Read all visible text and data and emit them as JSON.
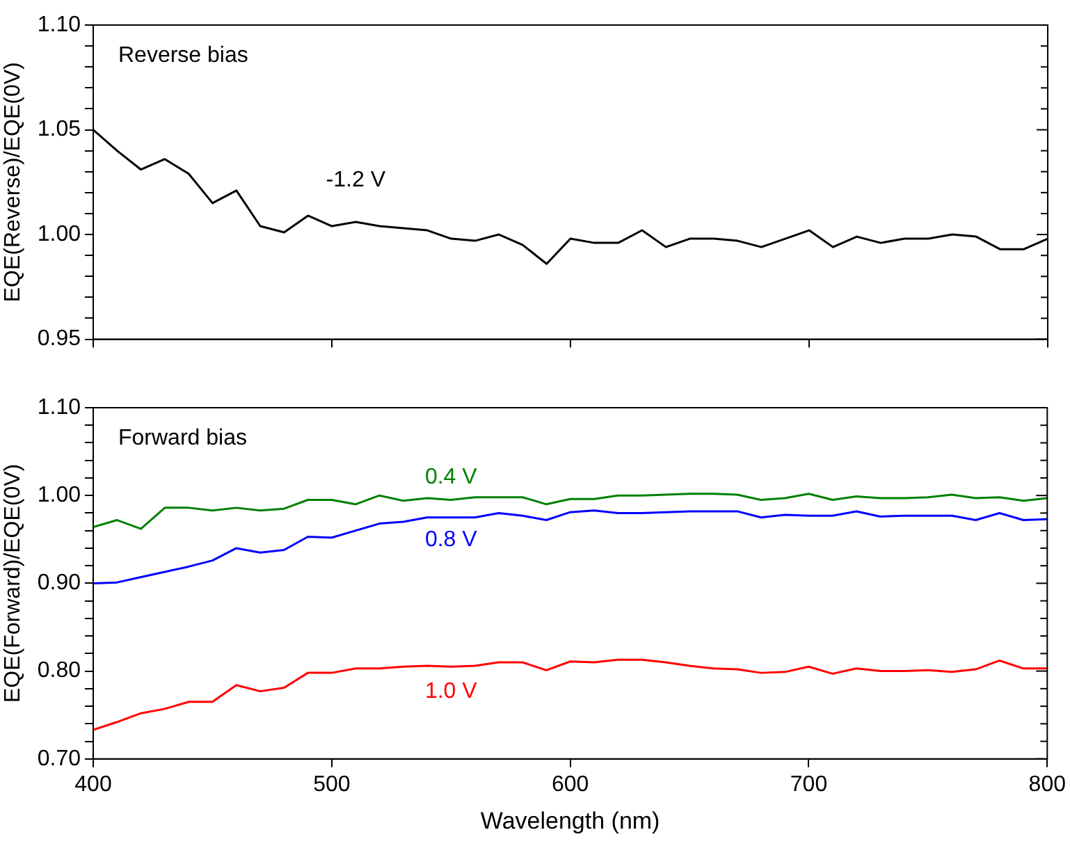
{
  "chart_data": [
    {
      "type": "line",
      "ylabel": "EQE(Reverse)/EQE(0V)",
      "annotations": [
        "Reverse bias"
      ],
      "x": [
        400,
        410,
        420,
        430,
        440,
        450,
        460,
        470,
        480,
        490,
        500,
        510,
        520,
        530,
        540,
        550,
        560,
        570,
        580,
        590,
        600,
        610,
        620,
        630,
        640,
        650,
        660,
        670,
        680,
        690,
        700,
        710,
        720,
        730,
        740,
        750,
        760,
        770,
        780,
        790,
        800
      ],
      "series": [
        {
          "name": "-1.2 V",
          "color": "#000000",
          "values": [
            1.05,
            1.04,
            1.031,
            1.036,
            1.029,
            1.015,
            1.021,
            1.004,
            1.001,
            1.009,
            1.004,
            1.006,
            1.004,
            1.003,
            1.002,
            0.998,
            0.997,
            1.0,
            0.995,
            0.986,
            0.998,
            0.996,
            0.996,
            1.002,
            0.994,
            0.998,
            0.998,
            0.997,
            0.994,
            0.998,
            1.002,
            0.994,
            0.999,
            0.996,
            0.998,
            0.998,
            1.0,
            0.999,
            0.993,
            0.993,
            0.998
          ]
        }
      ],
      "xlim": [
        400,
        800
      ],
      "xticks": [
        400,
        500,
        600,
        700,
        800
      ],
      "ylim": [
        0.95,
        1.1
      ],
      "yticks": [
        0.95,
        {
          "value": 0.96,
          "label": null
        },
        {
          "value": 0.97,
          "label": null
        },
        {
          "value": 0.98,
          "label": null
        },
        {
          "value": 0.99,
          "label": null
        },
        {
          "value": 1.0,
          "label": "1.00"
        },
        {
          "value": 1.01,
          "label": null
        },
        {
          "value": 1.02,
          "label": null
        },
        {
          "value": 1.03,
          "label": null
        },
        {
          "value": 1.04,
          "label": null
        },
        1.05,
        {
          "value": 1.06,
          "label": null
        },
        {
          "value": 1.07,
          "label": null
        },
        {
          "value": 1.08,
          "label": null
        },
        {
          "value": 1.09,
          "label": null
        },
        {
          "value": 1.1,
          "label": "1.10"
        }
      ],
      "tick_labels": "y",
      "grid": false,
      "legend": false,
      "marker": "none",
      "line_style": "solid"
    },
    {
      "type": "line",
      "xlabel": "Wavelength (nm)",
      "ylabel": "EQE(Forward)/EQE(0V)",
      "annotations": [
        "Forward bias"
      ],
      "x": [
        400,
        410,
        420,
        430,
        440,
        450,
        460,
        470,
        480,
        490,
        500,
        510,
        520,
        530,
        540,
        550,
        560,
        570,
        580,
        590,
        600,
        610,
        620,
        630,
        640,
        650,
        660,
        670,
        680,
        690,
        700,
        710,
        720,
        730,
        740,
        750,
        760,
        770,
        780,
        790,
        800
      ],
      "series": [
        {
          "name": "0.4 V",
          "color": "#008000",
          "values": [
            0.964,
            0.972,
            0.962,
            0.986,
            0.986,
            0.983,
            0.986,
            0.983,
            0.985,
            0.995,
            0.995,
            0.99,
            1.0,
            0.994,
            0.997,
            0.995,
            0.998,
            0.998,
            0.998,
            0.99,
            0.996,
            0.996,
            1.0,
            1.0,
            1.001,
            1.002,
            1.002,
            1.001,
            0.995,
            0.997,
            1.002,
            0.995,
            0.999,
            0.997,
            0.997,
            0.998,
            1.001,
            0.997,
            0.998,
            0.994,
            0.997
          ]
        },
        {
          "name": "0.8 V",
          "color": "#0000ff",
          "values": [
            0.9,
            0.901,
            0.907,
            0.913,
            0.919,
            0.926,
            0.94,
            0.935,
            0.938,
            0.953,
            0.952,
            0.96,
            0.968,
            0.97,
            0.975,
            0.975,
            0.975,
            0.98,
            0.977,
            0.972,
            0.981,
            0.983,
            0.98,
            0.98,
            0.981,
            0.982,
            0.982,
            0.982,
            0.975,
            0.978,
            0.977,
            0.977,
            0.982,
            0.976,
            0.977,
            0.977,
            0.977,
            0.972,
            0.98,
            0.972,
            0.973
          ]
        },
        {
          "name": "1.0 V",
          "color": "#ff0000",
          "values": [
            0.733,
            0.742,
            0.752,
            0.757,
            0.765,
            0.765,
            0.784,
            0.777,
            0.781,
            0.798,
            0.798,
            0.803,
            0.803,
            0.805,
            0.806,
            0.805,
            0.806,
            0.81,
            0.81,
            0.801,
            0.811,
            0.81,
            0.813,
            0.813,
            0.81,
            0.806,
            0.803,
            0.802,
            0.798,
            0.799,
            0.805,
            0.797,
            0.803,
            0.8,
            0.8,
            0.801,
            0.799,
            0.802,
            0.812,
            0.803,
            0.803
          ]
        }
      ],
      "xlim": [
        400,
        800
      ],
      "xticks": [
        400,
        500,
        600,
        700,
        800
      ],
      "ylim": [
        0.7,
        1.1
      ],
      "yticks": [
        {
          "value": 0.7,
          "label": "0.70"
        },
        {
          "value": 0.72,
          "label": null
        },
        {
          "value": 0.74,
          "label": null
        },
        {
          "value": 0.76,
          "label": null
        },
        {
          "value": 0.78,
          "label": null
        },
        {
          "value": 0.8,
          "label": "0.80"
        },
        {
          "value": 0.82,
          "label": null
        },
        {
          "value": 0.84,
          "label": null
        },
        {
          "value": 0.86,
          "label": null
        },
        {
          "value": 0.88,
          "label": null
        },
        {
          "value": 0.9,
          "label": "0.90"
        },
        {
          "value": 0.92,
          "label": null
        },
        {
          "value": 0.94,
          "label": null
        },
        {
          "value": 0.96,
          "label": null
        },
        {
          "value": 0.98,
          "label": null
        },
        {
          "value": 1.0,
          "label": "1.00"
        },
        {
          "value": 1.02,
          "label": null
        },
        {
          "value": 1.04,
          "label": null
        },
        {
          "value": 1.06,
          "label": null
        },
        {
          "value": 1.08,
          "label": null
        },
        {
          "value": 1.1,
          "label": "1.10"
        }
      ],
      "grid": false,
      "legend": false,
      "marker": "none",
      "line_style": "solid"
    }
  ]
}
